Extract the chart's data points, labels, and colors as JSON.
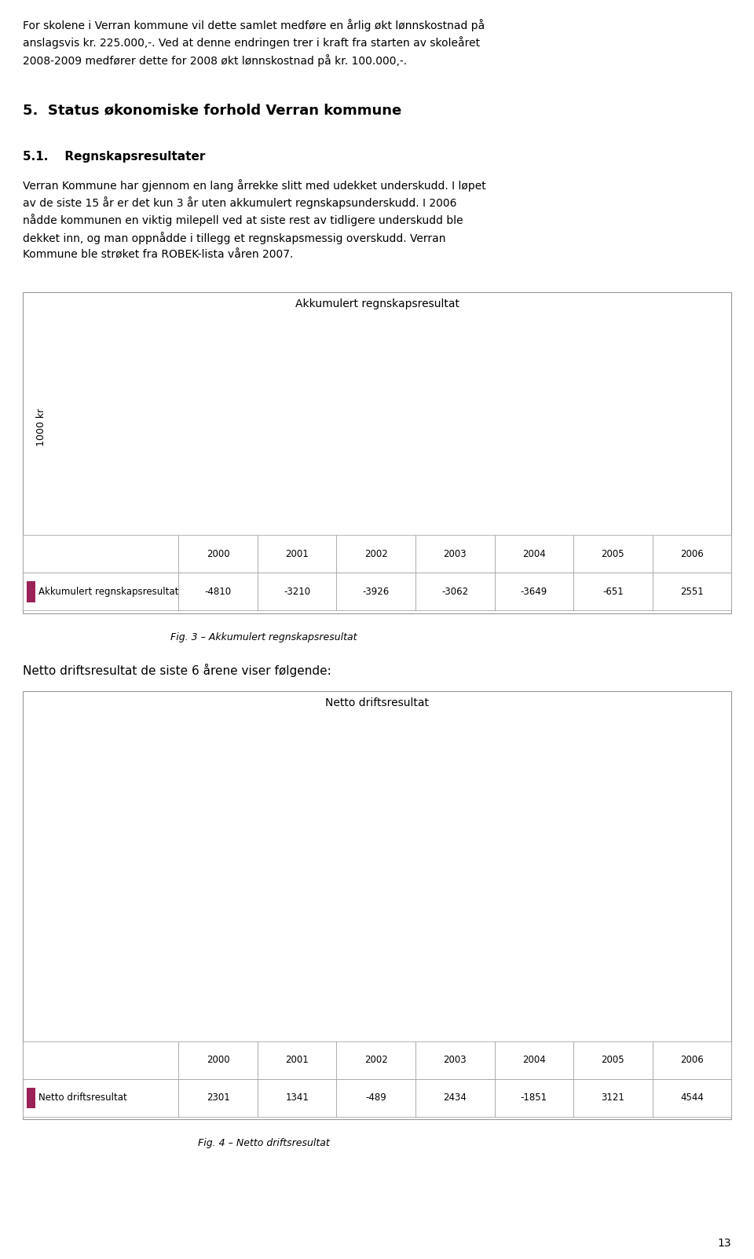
{
  "page_text": [
    "For skolene i Verran kommune vil dette samlet medføre en årlig økt lønnskostnad på",
    "anslagsvis kr. 225.000,-. Ved at denne endringen trer i kraft fra starten av skoleåret",
    "2008-2009 medfører dette for 2008 økt lønnskostnad på kr. 100.000,-."
  ],
  "heading1": "5.  Status økonomiske forhold Verran kommune",
  "heading2": "5.1.    Regnskapsresultater",
  "body_text": [
    "Verran Kommune har gjennom en lang årrekke slitt med udekket underskudd. I løpet",
    "av de siste 15 år er det kun 3 år uten akkumulert regnskapsunderskudd. I 2006",
    "nådde kommunen en viktig milepell ved at siste rest av tidligere underskudd ble",
    "dekket inn, og man oppnådde i tillegg et regnskapsmessig overskudd. Verran",
    "Kommune ble strøket fra ROBEK-lista våren 2007."
  ],
  "chart1_title": "Akkumulert regnskapsresultat",
  "chart1_ylabel": "1000 kr",
  "chart1_years": [
    "2000",
    "2001",
    "2002",
    "2003",
    "2004",
    "2005",
    "2006"
  ],
  "chart1_values": [
    -4810,
    -3210,
    -3926,
    -3062,
    -3649,
    -651,
    2551
  ],
  "chart1_ylim": [
    -6000,
    4000
  ],
  "chart1_yticks": [
    -6000,
    -4000,
    -2000,
    0,
    2000,
    4000
  ],
  "chart1_legend": "Akkumulert regnskapsresultat",
  "chart1_caption": "Fig. 3 – Akkumulert regnskapsresultat",
  "chart2_title": "Netto driftsresultat",
  "chart2_years": [
    "2000",
    "2001",
    "2002",
    "2003",
    "2004",
    "2005",
    "2006"
  ],
  "chart2_values": [
    2301,
    1341,
    -489,
    2434,
    -1851,
    3121,
    4544
  ],
  "chart2_ylim": [
    -3000,
    5000
  ],
  "chart2_yticks": [
    -3000,
    -2000,
    -1000,
    0,
    1000,
    2000,
    3000,
    4000,
    5000
  ],
  "chart2_legend": "Netto driftsresultat",
  "chart2_caption": "Fig. 4 – Netto driftsresultat",
  "mid_text": "Netto driftsresultat de siste 6 årene viser følgende:",
  "bar_color": "#9B2257",
  "chart_bg": "#C8C8C8",
  "page_number": "13",
  "text_color": "#000000",
  "grid_color": "#ffffff",
  "border_color": "#999999"
}
